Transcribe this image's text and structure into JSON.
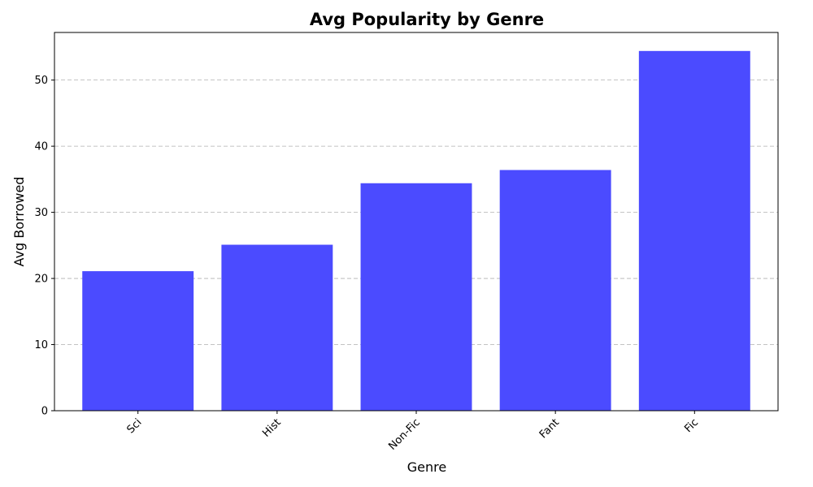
{
  "chart_data": {
    "type": "bar",
    "title": "Avg Popularity by Genre",
    "xlabel": "Genre",
    "ylabel": "Avg Borrowed",
    "categories": [
      "Sci",
      "Hist",
      "Non-Fic",
      "Fant",
      "Fic"
    ],
    "values": [
      21.1,
      25.1,
      34.4,
      36.4,
      54.4
    ],
    "ylim": [
      0,
      57.2
    ],
    "yticks": [
      0,
      10,
      20,
      30,
      40,
      50
    ],
    "grid": "y",
    "bar_color": "#4b4bff"
  }
}
